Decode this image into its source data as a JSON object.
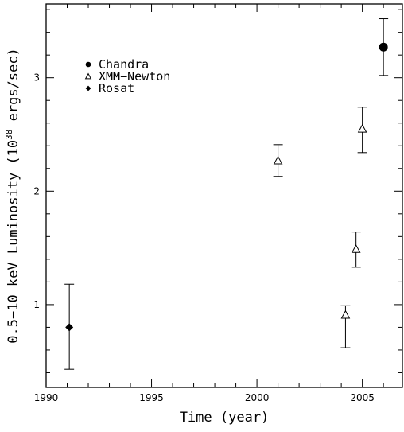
{
  "chart_data": {
    "type": "scatter",
    "title": "",
    "xlabel": "Time (year)",
    "ylabel": {
      "prefix": "0.5−10 keV Luminosity (10",
      "exponent": "38",
      "suffix": " ergs/sec)"
    },
    "xlim": [
      1990,
      2006.9
    ],
    "ylim": [
      0.27,
      3.65
    ],
    "x_ticks": [
      1990,
      1995,
      2000,
      2005
    ],
    "x_tick_labels": [
      "1990",
      "1995",
      "2000",
      "2005"
    ],
    "y_ticks": [
      1,
      2,
      3
    ],
    "y_tick_labels": [
      "1",
      "2",
      "3"
    ],
    "grid": false,
    "legend_position": "top-left",
    "series": [
      {
        "name": "Chandra",
        "marker": "filled-circle",
        "points": [
          {
            "x": 2006.0,
            "y": 3.27,
            "err_low": 3.02,
            "err_high": 3.52
          }
        ]
      },
      {
        "name": "XMM−Newton",
        "marker": "open-triangle",
        "points": [
          {
            "x": 2001.0,
            "y": 2.27,
            "err_low": 2.13,
            "err_high": 2.41
          },
          {
            "x": 2004.2,
            "y": 0.91,
            "err_low": 0.62,
            "err_high": 0.99
          },
          {
            "x": 2004.7,
            "y": 1.49,
            "err_low": 1.33,
            "err_high": 1.64
          },
          {
            "x": 2005.0,
            "y": 2.55,
            "err_low": 2.34,
            "err_high": 2.74
          }
        ]
      },
      {
        "name": "Rosat",
        "marker": "filled-diamond",
        "points": [
          {
            "x": 1991.1,
            "y": 0.8,
            "err_low": 0.43,
            "err_high": 1.18
          }
        ]
      }
    ]
  }
}
